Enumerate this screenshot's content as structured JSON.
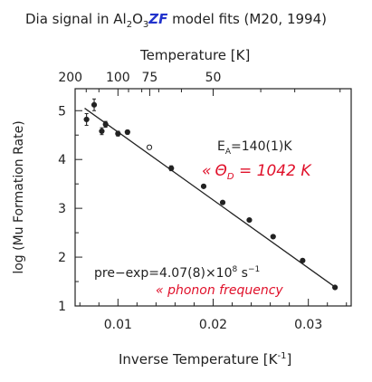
{
  "chart_data": {
    "type": "scatter",
    "title": {
      "prefix": "Dia signal in Al",
      "sub1": "2",
      "mid": "O",
      "sub2": "3",
      "highlight": "ZF",
      "suffix": " model fits (M20, 1994)"
    },
    "xlabel": "Inverse Temperature [K",
    "xlabel_sup": "-1",
    "xlabel_end": "]",
    "ylabel": "log (Mu Formation Rate)",
    "top_axis_label": "Temperature [K]",
    "xlim": [
      0.0055,
      0.0345
    ],
    "ylim": [
      1.0,
      5.45
    ],
    "x_ticks": [
      0.01,
      0.02,
      0.03
    ],
    "x_tick_labels": [
      "0.01",
      "0.02",
      "0.03"
    ],
    "y_ticks": [
      1,
      2,
      3,
      4,
      5
    ],
    "y_tick_labels": [
      "1",
      "2",
      "3",
      "4",
      "5"
    ],
    "top_ticks": [
      200,
      100,
      75,
      50
    ],
    "top_tick_labels": [
      "200",
      "100",
      "75",
      "50"
    ],
    "points": [
      {
        "x": 0.0067,
        "y": 4.82,
        "yerr": 0.12,
        "hollow": false
      },
      {
        "x": 0.0075,
        "y": 5.12,
        "yerr": 0.12,
        "hollow": false
      },
      {
        "x": 0.0083,
        "y": 4.58,
        "yerr": 0.07,
        "hollow": false
      },
      {
        "x": 0.0087,
        "y": 4.72,
        "yerr": 0.06,
        "hollow": false
      },
      {
        "x": 0.01,
        "y": 4.53,
        "yerr": 0.05,
        "hollow": false
      },
      {
        "x": 0.011,
        "y": 4.56,
        "yerr": 0.04,
        "hollow": false
      },
      {
        "x": 0.0133,
        "y": 4.25,
        "yerr": 0.04,
        "hollow": true
      },
      {
        "x": 0.0156,
        "y": 3.82,
        "yerr": 0.05,
        "hollow": false
      },
      {
        "x": 0.019,
        "y": 3.45,
        "yerr": 0.0,
        "hollow": false
      },
      {
        "x": 0.021,
        "y": 3.12,
        "yerr": 0.0,
        "hollow": false
      },
      {
        "x": 0.0238,
        "y": 2.76,
        "yerr": 0.0,
        "hollow": false
      },
      {
        "x": 0.0263,
        "y": 2.42,
        "yerr": 0.0,
        "hollow": false
      },
      {
        "x": 0.0294,
        "y": 1.93,
        "yerr": 0.0,
        "hollow": false
      },
      {
        "x": 0.0328,
        "y": 1.38,
        "yerr": 0.0,
        "hollow": false
      }
    ],
    "fit_line": {
      "x": [
        0.0065,
        0.033
      ],
      "y": [
        5.05,
        1.36
      ]
    },
    "annotations": {
      "ea": "E",
      "ea_sub": "A",
      "ea_rest": "=140(1)K",
      "theta_prefix": "«",
      "theta_symbol": "Θ",
      "theta_sub": "D",
      "theta_rest": " = 1042 K",
      "preexp": "pre−exp=4.07(8)×10",
      "preexp_sup": "8",
      "preexp_unit": " s",
      "preexp_unit_sup": "−1",
      "phonon": "« phonon frequency"
    },
    "colors": {
      "highlight": "#2233cc",
      "handwriting": "#e0102a",
      "ink": "#222222"
    }
  }
}
